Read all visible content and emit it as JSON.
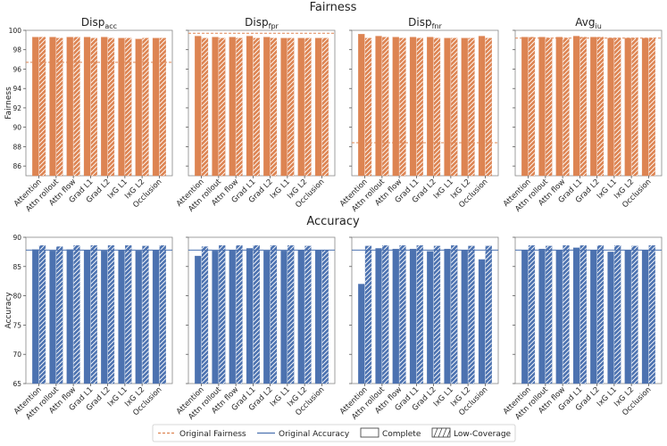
{
  "section_titles": {
    "fairness": "Fairness",
    "accuracy": "Accuracy"
  },
  "methods": [
    "Attention",
    "Attn rollout",
    "Attn flow",
    "Grad L1",
    "Grad L2",
    "IxG L1",
    "IxG L2",
    "Occlusion"
  ],
  "colors": {
    "fairness": "#dd8452",
    "accuracy": "#4c72b0",
    "axis": "#444444",
    "hatch": "#ffffff"
  },
  "chart_data": [
    {
      "type": "bar",
      "group": "fairness",
      "metric": "Disp",
      "metric_sub": "acc",
      "ylabel": "Fairness",
      "ylim": [
        85,
        100
      ],
      "yticks": [
        86,
        88,
        90,
        92,
        94,
        96,
        98,
        100
      ],
      "original": 96.7,
      "series": [
        {
          "name": "Complete",
          "values": [
            99.3,
            99.3,
            99.3,
            99.3,
            99.3,
            99.2,
            99.1,
            99.2
          ]
        },
        {
          "name": "Low-Coverage",
          "values": [
            99.3,
            99.2,
            99.3,
            99.2,
            99.2,
            99.2,
            99.2,
            99.2
          ]
        }
      ]
    },
    {
      "type": "bar",
      "group": "fairness",
      "metric": "Disp",
      "metric_sub": "fpr",
      "ylabel": "",
      "ylim": [
        85,
        100
      ],
      "yticks": [
        86,
        88,
        90,
        92,
        94,
        96,
        98,
        100
      ],
      "original": 99.7,
      "series": [
        {
          "name": "Complete",
          "values": [
            99.4,
            99.3,
            99.3,
            99.4,
            99.3,
            99.2,
            99.2,
            99.2
          ]
        },
        {
          "name": "Low-Coverage",
          "values": [
            99.2,
            99.2,
            99.2,
            99.2,
            99.2,
            99.2,
            99.2,
            99.2
          ]
        }
      ]
    },
    {
      "type": "bar",
      "group": "fairness",
      "metric": "Disp",
      "metric_sub": "fnr",
      "ylabel": "",
      "ylim": [
        85,
        100
      ],
      "yticks": [
        86,
        88,
        90,
        92,
        94,
        96,
        98,
        100
      ],
      "original": 88.4,
      "series": [
        {
          "name": "Complete",
          "values": [
            99.6,
            99.4,
            99.3,
            99.3,
            99.3,
            99.2,
            99.2,
            99.4
          ]
        },
        {
          "name": "Low-Coverage",
          "values": [
            99.2,
            99.3,
            99.2,
            99.2,
            99.2,
            99.2,
            99.2,
            99.2
          ]
        }
      ]
    },
    {
      "type": "bar",
      "group": "fairness",
      "metric": "Avg",
      "metric_sub": "iu",
      "ylabel": "",
      "ylim": [
        85,
        100
      ],
      "yticks": [
        86,
        88,
        90,
        92,
        94,
        96,
        98,
        100
      ],
      "original": 99.2,
      "series": [
        {
          "name": "Complete",
          "values": [
            99.3,
            99.3,
            99.3,
            99.4,
            99.3,
            99.2,
            99.2,
            99.2
          ]
        },
        {
          "name": "Low-Coverage",
          "values": [
            99.3,
            99.2,
            99.2,
            99.3,
            99.3,
            99.2,
            99.2,
            99.2
          ]
        }
      ]
    },
    {
      "type": "bar",
      "group": "accuracy",
      "metric": "",
      "metric_sub": "",
      "ylabel": "Accuracy",
      "ylim": [
        65,
        90
      ],
      "yticks": [
        65,
        70,
        75,
        80,
        85,
        90
      ],
      "original": 87.8,
      "series": [
        {
          "name": "Complete",
          "values": [
            87.9,
            87.7,
            87.9,
            87.8,
            87.7,
            87.8,
            87.7,
            87.8
          ]
        },
        {
          "name": "Low-Coverage",
          "values": [
            88.6,
            88.4,
            88.6,
            88.6,
            88.6,
            88.6,
            88.5,
            88.6
          ]
        }
      ]
    },
    {
      "type": "bar",
      "group": "accuracy",
      "metric": "",
      "metric_sub": "",
      "ylabel": "",
      "ylim": [
        65,
        90
      ],
      "yticks": [
        65,
        70,
        75,
        80,
        85,
        90
      ],
      "original": 87.8,
      "series": [
        {
          "name": "Complete",
          "values": [
            86.8,
            87.7,
            87.8,
            88.1,
            87.7,
            87.7,
            87.8,
            87.8
          ]
        },
        {
          "name": "Low-Coverage",
          "values": [
            88.4,
            88.6,
            88.6,
            88.6,
            88.6,
            88.6,
            88.5,
            87.8
          ]
        }
      ]
    },
    {
      "type": "bar",
      "group": "accuracy",
      "metric": "",
      "metric_sub": "",
      "ylabel": "",
      "ylim": [
        65,
        90
      ],
      "yticks": [
        65,
        70,
        75,
        80,
        85,
        90
      ],
      "original": 87.8,
      "series": [
        {
          "name": "Complete",
          "values": [
            82.0,
            88.1,
            88.0,
            88.0,
            87.6,
            88.0,
            87.8,
            86.2
          ]
        },
        {
          "name": "Low-Coverage",
          "values": [
            88.5,
            88.6,
            88.6,
            88.6,
            88.5,
            88.6,
            88.5,
            88.5
          ]
        }
      ]
    },
    {
      "type": "bar",
      "group": "accuracy",
      "metric": "",
      "metric_sub": "",
      "ylabel": "",
      "ylim": [
        65,
        90
      ],
      "yticks": [
        65,
        70,
        75,
        80,
        85,
        90
      ],
      "original": 87.8,
      "series": [
        {
          "name": "Complete",
          "values": [
            87.8,
            88.0,
            87.8,
            88.2,
            87.8,
            87.5,
            87.8,
            87.8
          ]
        },
        {
          "name": "Low-Coverage",
          "values": [
            88.6,
            88.5,
            88.6,
            88.6,
            88.6,
            88.6,
            88.5,
            88.6
          ]
        }
      ]
    }
  ],
  "legend": {
    "original_fairness": "Original Fairness",
    "original_accuracy": "Original Accuracy",
    "complete": "Complete",
    "low_coverage": "Low-Coverage"
  }
}
